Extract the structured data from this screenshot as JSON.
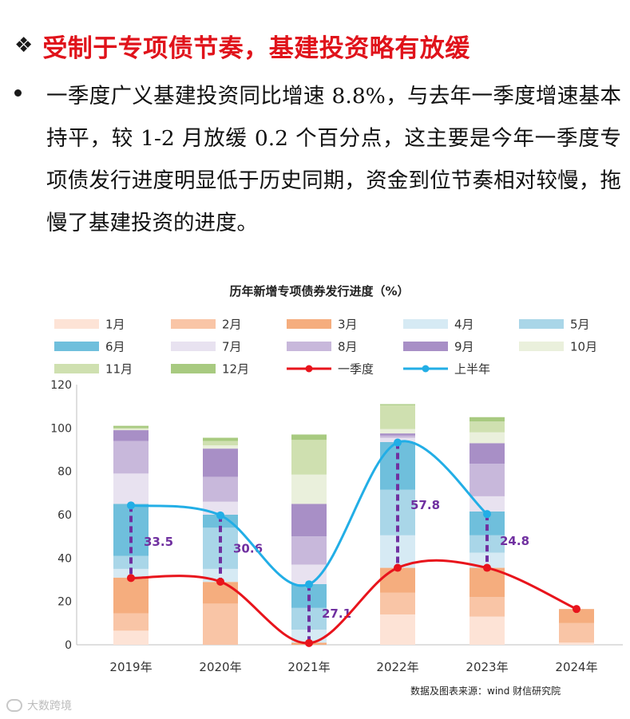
{
  "heading": {
    "marker": "❖",
    "title": "受制于专项债节奏，基建投资略有放缓"
  },
  "paragraph": "一季度广义基建投资同比增速 8.8%，与去年一季度增速基本持平，较 1-2 月放缓 0.2 个百分点，这主要是今年一季度专项债发行进度明显低于历史同期，资金到位节奏相对较慢，拖慢了基建投资的进度。",
  "colors": {
    "title_red": "#e0131b",
    "line_q1": "#e8141c",
    "line_h1": "#22aee6",
    "gap_marker": "#7030a0"
  },
  "chart_data": {
    "type": "bar",
    "title": "历年新增专项债券发行进度（%）",
    "categories": [
      "2019年",
      "2020年",
      "2021年",
      "2022年",
      "2023年",
      "2024年"
    ],
    "ylim": [
      0,
      120
    ],
    "yticks": [
      0,
      20,
      40,
      60,
      80,
      100,
      120
    ],
    "series": [
      {
        "name": "1月",
        "color": "#fde3d6",
        "values": [
          6.5,
          0,
          0,
          14,
          13,
          1
        ]
      },
      {
        "name": "2月",
        "color": "#f9c5a6",
        "values": [
          8,
          19,
          0,
          10,
          9,
          9
        ]
      },
      {
        "name": "3月",
        "color": "#f5ad7e",
        "values": [
          16.5,
          10,
          1,
          11.5,
          13.5,
          6.5
        ]
      },
      {
        "name": "4月",
        "color": "#d6eaf4",
        "values": [
          4,
          6,
          6,
          15,
          7,
          0
        ]
      },
      {
        "name": "5月",
        "color": "#a9d6e8",
        "values": [
          6,
          19,
          10,
          21,
          8,
          0
        ]
      },
      {
        "name": "6月",
        "color": "#6fbfdc",
        "values": [
          24,
          6,
          11,
          22,
          11,
          0
        ]
      },
      {
        "name": "7月",
        "color": "#e8e2f0",
        "values": [
          14,
          6,
          9,
          2,
          7,
          0
        ]
      },
      {
        "name": "8月",
        "color": "#c8b8db",
        "values": [
          15,
          11.5,
          13,
          1,
          15,
          0
        ]
      },
      {
        "name": "9月",
        "color": "#a88fc6",
        "values": [
          5,
          13,
          15,
          1,
          9.5,
          0
        ]
      },
      {
        "name": "10月",
        "color": "#eaf0dc",
        "values": [
          0.5,
          1.5,
          13.5,
          2,
          5,
          0
        ]
      },
      {
        "name": "11月",
        "color": "#cfe0b0",
        "values": [
          0.5,
          2,
          16,
          11,
          5,
          0
        ]
      },
      {
        "name": "12月",
        "color": "#a8ca80",
        "values": [
          1,
          1.5,
          2.5,
          0.5,
          2,
          0
        ]
      }
    ],
    "lines": [
      {
        "name": "一季度",
        "color": "#e8141c",
        "values": [
          30.8,
          29.1,
          0.8,
          35.5,
          35.5,
          16.5
        ]
      },
      {
        "name": "上半年",
        "color": "#22aee6",
        "values": [
          64.3,
          59.7,
          27.9,
          93.3,
          60.3,
          null
        ]
      }
    ],
    "gap_labels": [
      {
        "category": "2019年",
        "value": "33.5"
      },
      {
        "category": "2020年",
        "value": "30.6"
      },
      {
        "category": "2021年",
        "value": "27.1"
      },
      {
        "category": "2022年",
        "value": "57.8"
      },
      {
        "category": "2023年",
        "value": "24.8"
      }
    ],
    "legend_position": "top",
    "grid": false
  },
  "source": "数据及图表来源：wind  财信研究院",
  "watermark": "大数跨境"
}
